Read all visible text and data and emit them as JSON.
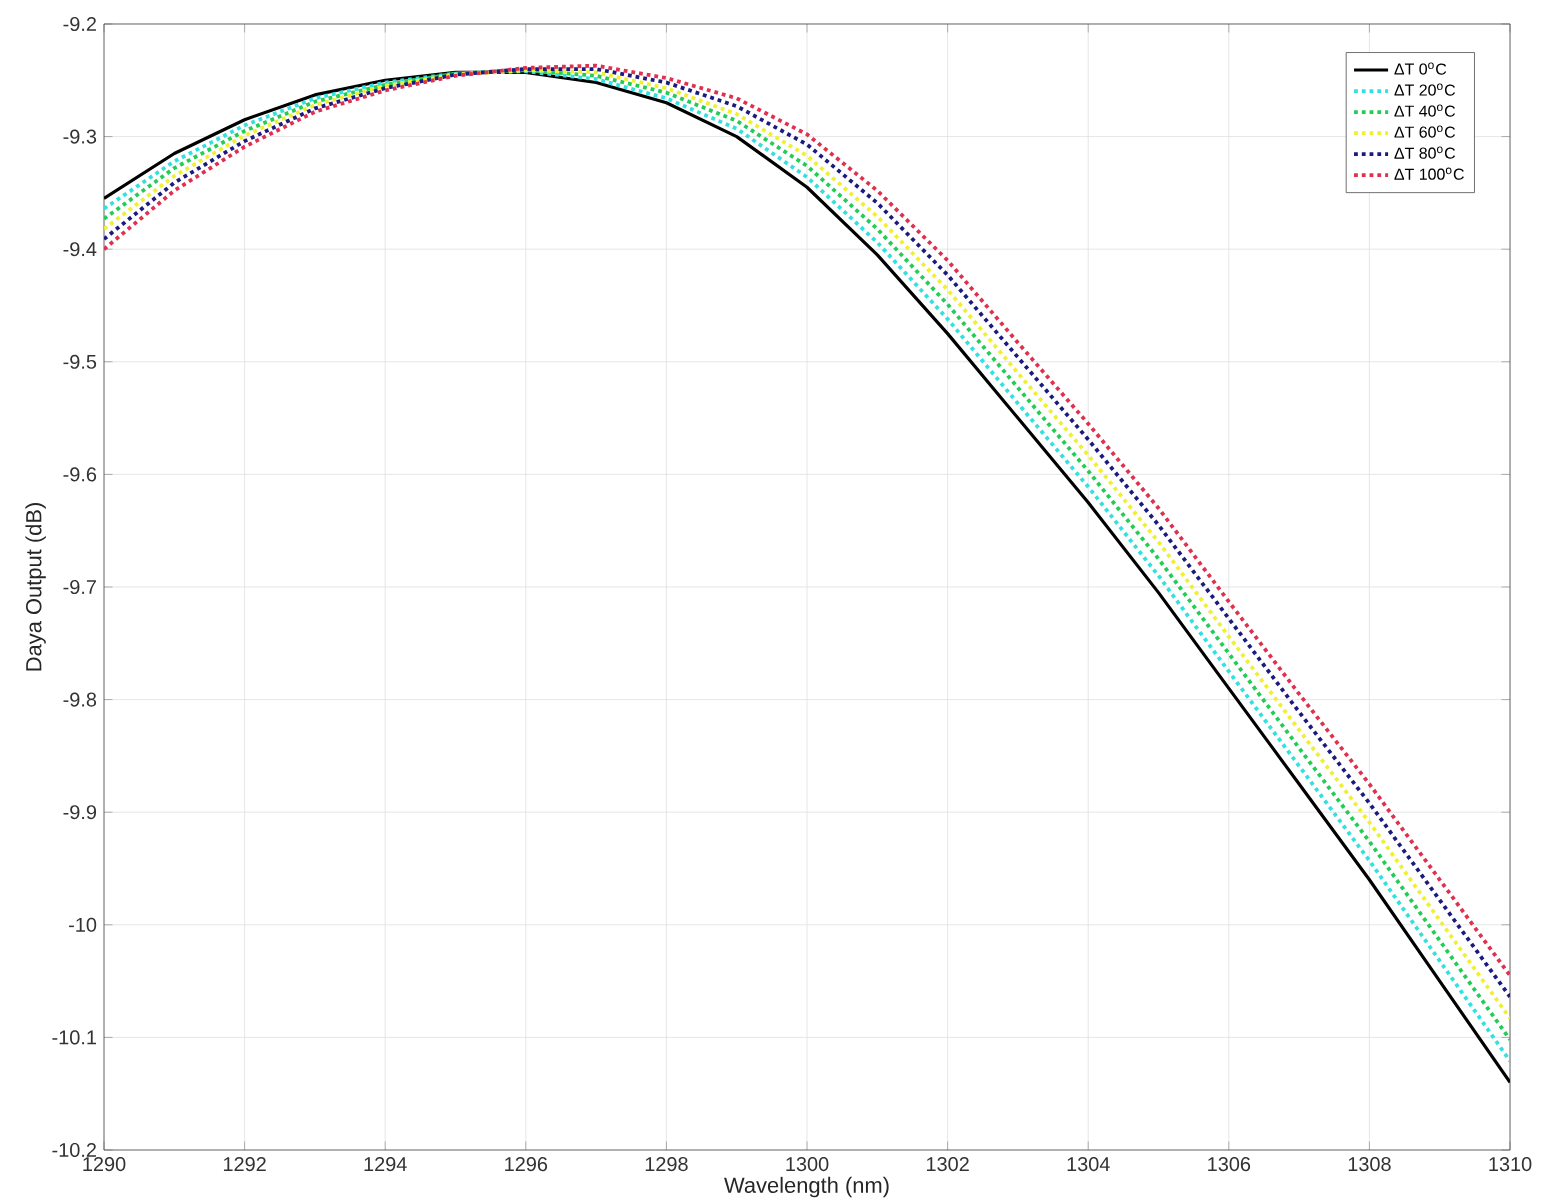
{
  "chart_data": {
    "type": "line",
    "xlabel": "Wavelength (nm)",
    "ylabel": "Daya Output (dB)",
    "x": [
      1290,
      1291,
      1292,
      1293,
      1294,
      1295,
      1296,
      1297,
      1298,
      1299,
      1300,
      1301,
      1302,
      1303,
      1304,
      1305,
      1306,
      1307,
      1308,
      1309,
      1310
    ],
    "series": [
      {
        "name": "ΔT 0$^{o}$C",
        "color": "#000000",
        "line_style": "solid",
        "values": [
          -9.355,
          -9.315,
          -9.285,
          -9.263,
          -9.25,
          -9.243,
          -9.243,
          -9.252,
          -9.27,
          -9.3,
          -9.345,
          -9.405,
          -9.475,
          -9.55,
          -9.625,
          -9.705,
          -9.79,
          -9.875,
          -9.96,
          -10.05,
          -10.14
        ]
      },
      {
        "name": "ΔT 20$^{o}$C",
        "color": "#33e0e0",
        "line_style": "dotted",
        "values": [
          -9.364,
          -9.322,
          -9.29,
          -9.266,
          -9.252,
          -9.244,
          -9.242,
          -9.249,
          -9.266,
          -9.293,
          -9.336,
          -9.394,
          -9.462,
          -9.537,
          -9.611,
          -9.69,
          -9.775,
          -9.859,
          -9.943,
          -10.032,
          -10.121
        ]
      },
      {
        "name": "ΔT 40$^{o}$C",
        "color": "#22cc55",
        "line_style": "dotted",
        "values": [
          -9.373,
          -9.328,
          -9.295,
          -9.269,
          -9.254,
          -9.244,
          -9.241,
          -9.246,
          -9.261,
          -9.286,
          -9.326,
          -9.382,
          -9.449,
          -9.523,
          -9.597,
          -9.675,
          -9.759,
          -9.843,
          -9.926,
          -10.014,
          -10.102
        ]
      },
      {
        "name": "ΔT 60$^{o}$C",
        "color": "#f0f030",
        "line_style": "dotted",
        "values": [
          -9.382,
          -9.335,
          -9.299,
          -9.272,
          -9.255,
          -9.245,
          -9.241,
          -9.243,
          -9.257,
          -9.28,
          -9.317,
          -9.371,
          -9.436,
          -9.51,
          -9.583,
          -9.66,
          -9.744,
          -9.827,
          -9.909,
          -9.996,
          -10.083
        ]
      },
      {
        "name": "ΔT 80$^{o}$C",
        "color": "#1a1a80",
        "line_style": "dotted",
        "values": [
          -9.391,
          -9.341,
          -9.304,
          -9.275,
          -9.257,
          -9.245,
          -9.24,
          -9.24,
          -9.252,
          -9.273,
          -9.307,
          -9.359,
          -9.423,
          -9.496,
          -9.569,
          -9.645,
          -9.728,
          -9.811,
          -9.892,
          -9.978,
          -10.064
        ]
      },
      {
        "name": "ΔT 100$^{o}$C",
        "color": "#e03050",
        "line_style": "dotted",
        "values": [
          -9.4,
          -9.348,
          -9.309,
          -9.278,
          -9.259,
          -9.246,
          -9.239,
          -9.237,
          -9.248,
          -9.266,
          -9.298,
          -9.348,
          -9.41,
          -9.483,
          -9.555,
          -9.63,
          -9.713,
          -9.795,
          -9.875,
          -9.96,
          -10.045
        ]
      }
    ],
    "xlim": [
      1290,
      1310
    ],
    "xticks": [
      1290,
      1292,
      1294,
      1296,
      1298,
      1300,
      1302,
      1304,
      1306,
      1308,
      1310
    ],
    "ylim": [
      -10.2,
      -9.2
    ],
    "yticks": [
      -10.2,
      -10.1,
      -10,
      -9.9,
      -9.8,
      -9.7,
      -9.6,
      -9.5,
      -9.4,
      -9.3,
      -9.2
    ],
    "grid": true,
    "legend": "top right",
    "marker": "none"
  }
}
